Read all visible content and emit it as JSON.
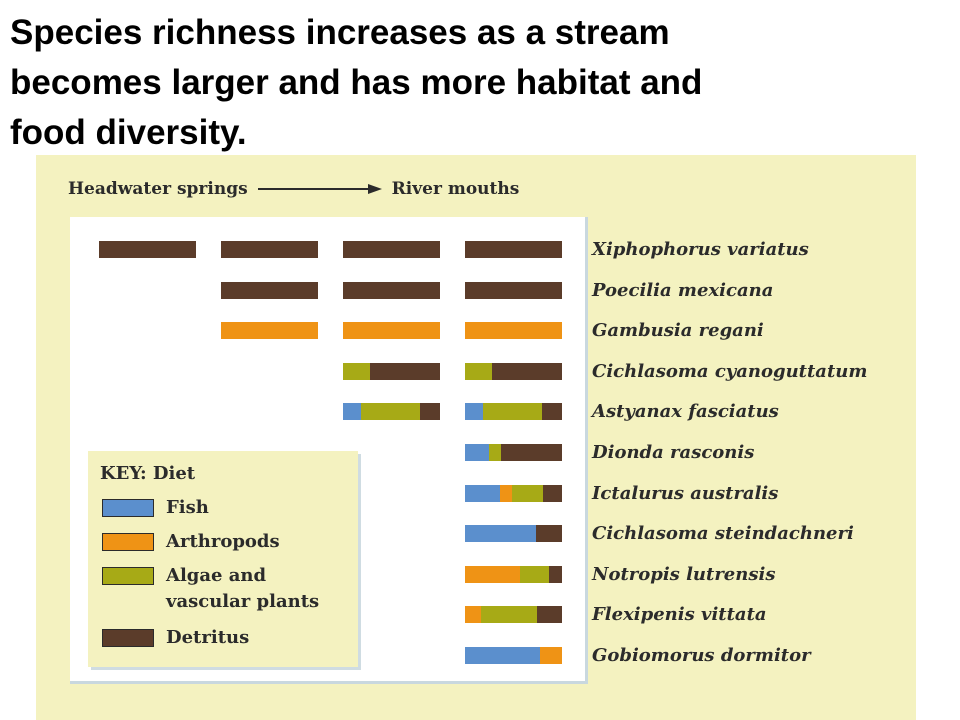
{
  "title": {
    "line1": "Species richness increases as a stream",
    "line2": "becomes larger and has more habitat and",
    "line3": "food diversity."
  },
  "figure": {
    "gradient_start": "Headwater springs",
    "gradient_end": "River mouths",
    "stage_count": 4,
    "species": [
      {
        "name": "Xiphophorus variatus",
        "first_stage": 0,
        "diet": {
          "detritus": 1.0
        }
      },
      {
        "name": "Poecilia mexicana",
        "first_stage": 1,
        "diet": {
          "detritus": 1.0
        }
      },
      {
        "name": "Gambusia regani",
        "first_stage": 1,
        "diet": {
          "arthropods": 1.0
        }
      },
      {
        "name": "Cichlasoma cyanoguttatum",
        "first_stage": 2,
        "diet": {
          "algae": 0.28,
          "detritus": 0.72
        }
      },
      {
        "name": "Astyanax fasciatus",
        "first_stage": 2,
        "diet": {
          "fish": 0.19,
          "algae": 0.6,
          "detritus": 0.21
        }
      },
      {
        "name": "Dionda rasconis",
        "first_stage": 3,
        "diet": {
          "fish": 0.25,
          "algae": 0.12,
          "detritus": 0.63
        }
      },
      {
        "name": "Ictalurus australis",
        "first_stage": 3,
        "diet": {
          "fish": 0.36,
          "arthropods": 0.12,
          "algae": 0.32,
          "detritus": 0.2
        }
      },
      {
        "name": "Cichlasoma steindachneri",
        "first_stage": 3,
        "diet": {
          "fish": 0.73,
          "detritus": 0.27
        }
      },
      {
        "name": "Notropis lutrensis",
        "first_stage": 3,
        "diet": {
          "arthropods": 0.57,
          "algae": 0.3,
          "detritus": 0.13
        }
      },
      {
        "name": "Flexipenis vittata",
        "first_stage": 3,
        "diet": {
          "arthropods": 0.16,
          "algae": 0.58,
          "detritus": 0.26
        }
      },
      {
        "name": "Gobiomorus dormitor",
        "first_stage": 3,
        "diet": {
          "fish": 0.77,
          "arthropods": 0.23
        }
      }
    ]
  },
  "key": {
    "title": "KEY: Diet",
    "items": [
      {
        "id": "fish",
        "line1": "Fish",
        "line2": "",
        "color": "#5b8fcd"
      },
      {
        "id": "arthropods",
        "line1": "Arthropods",
        "line2": "",
        "color": "#ef9315"
      },
      {
        "id": "algae",
        "line1": "Algae and",
        "line2": "vascular plants",
        "color": "#a7aa16"
      },
      {
        "id": "detritus",
        "line1": "Detritus",
        "line2": "",
        "color": "#5b3c2a"
      }
    ]
  }
}
